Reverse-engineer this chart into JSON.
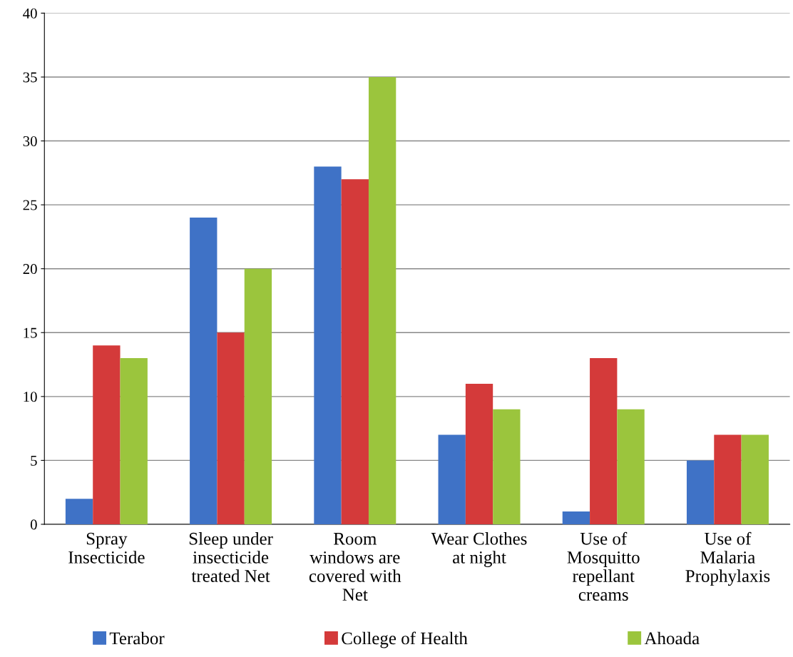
{
  "chart_data": {
    "type": "bar",
    "categories": [
      "Spray\nInsecticide",
      "Sleep under\ninsecticide\ntreated Net",
      "Room\nwindows are\ncovered with\nNet",
      "Wear Clothes\nat night",
      "Use of\nMosquitto\nrepellant\ncreams",
      "Use of\nMalaria\nProphylaxis"
    ],
    "series": [
      {
        "name": "Terabor",
        "color": "#3f72c6",
        "values": [
          2,
          24,
          28,
          7,
          1,
          5
        ]
      },
      {
        "name": "College of Health",
        "color": "#d43a3a",
        "values": [
          14,
          15,
          27,
          11,
          13,
          7
        ]
      },
      {
        "name": "Ahoada",
        "color": "#9bc53d",
        "values": [
          13,
          20,
          35,
          9,
          9,
          7
        ]
      }
    ],
    "ylim": [
      0,
      40
    ],
    "yticks": [
      0,
      5,
      10,
      15,
      20,
      25,
      30,
      35,
      40
    ],
    "grid": "y",
    "legend": "bottom"
  }
}
